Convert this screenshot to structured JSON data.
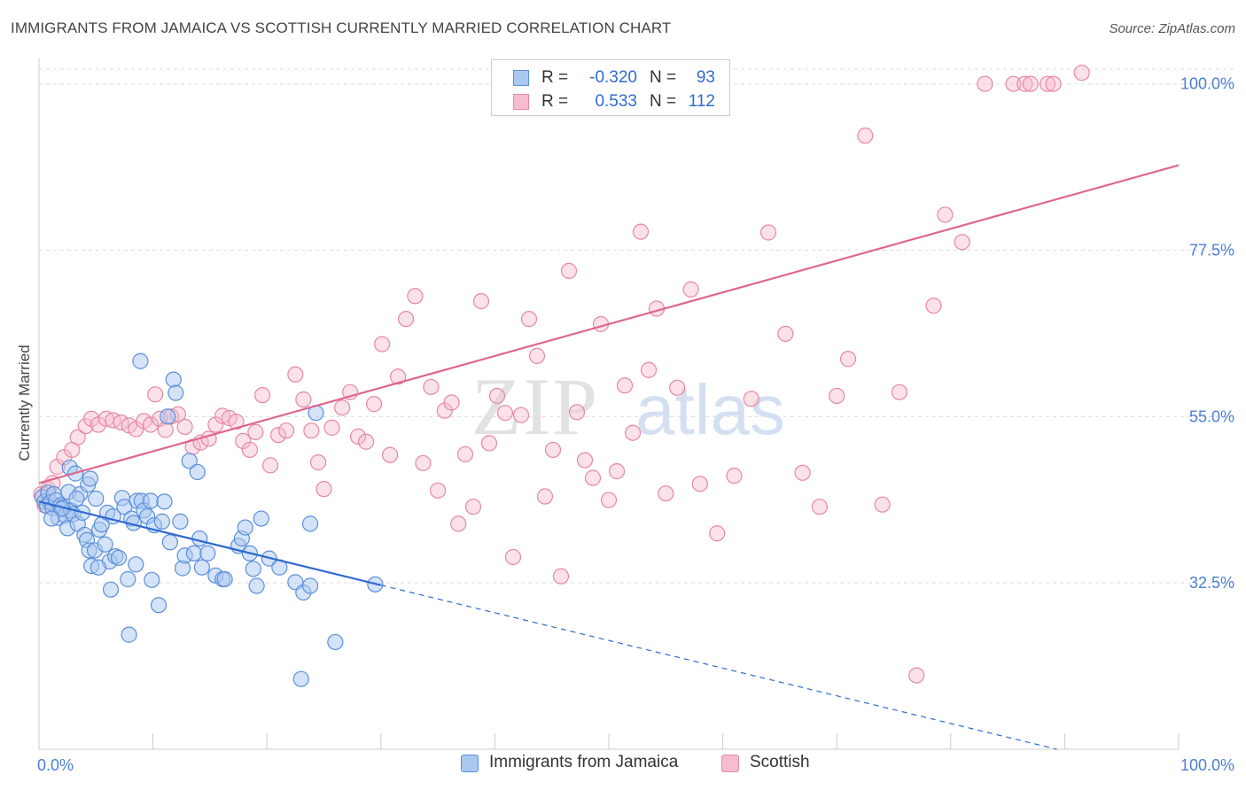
{
  "header": {
    "title": "IMMIGRANTS FROM JAMAICA VS SCOTTISH CURRENTLY MARRIED CORRELATION CHART",
    "source": "Source: ZipAtlas.com"
  },
  "stats_box": {
    "rows": [
      {
        "r_label": "R =",
        "r_value": "-0.320",
        "n_label": "N =",
        "n_value": "93"
      },
      {
        "r_label": "R =",
        "r_value": "0.533",
        "n_label": "N =",
        "n_value": "112"
      }
    ]
  },
  "legend": {
    "items": [
      {
        "label": "Immigrants from Jamaica"
      },
      {
        "label": "Scottish"
      }
    ]
  },
  "watermark": {
    "zip": "ZIP",
    "atlas": "atlas"
  },
  "chart_data": {
    "type": "scatter",
    "title": "IMMIGRANTS FROM JAMAICA VS SCOTTISH CURRENTLY MARRIED CORRELATION CHART",
    "xlabel": "",
    "ylabel": "Currently Married",
    "xlim": [
      0,
      100
    ],
    "ylim": [
      10,
      102
    ],
    "x_tick_labels": [
      "0.0%",
      "100.0%"
    ],
    "y_tick_labels": [
      "32.5%",
      "55.0%",
      "77.5%",
      "100.0%"
    ],
    "y_ticks": [
      32.5,
      55.0,
      77.5,
      100.0
    ],
    "grid": true,
    "legend_position": "bottom-center",
    "colors": {
      "jamaica_fill": "#a9c8f0",
      "jamaica_stroke": "#5b8fdc",
      "jamaica_line": "#2f6bd1",
      "scottish_fill": "#f7bccd",
      "scottish_stroke": "#e688a6",
      "scottish_line": "#e0668e",
      "stat_value": "#2f6bd1"
    },
    "series": [
      {
        "name": "Immigrants from Jamaica",
        "trend": {
          "x0": 0,
          "y0": 43.5,
          "x1": 30,
          "y1": 32.2,
          "dash_x1": 100,
          "dash_y1": 6.0
        },
        "points": [
          [
            0.3,
            44.1
          ],
          [
            0.5,
            43.5
          ],
          [
            0.7,
            42.9
          ],
          [
            0.8,
            44.7
          ],
          [
            1.0,
            43.4
          ],
          [
            1.2,
            42.6
          ],
          [
            1.3,
            44.5
          ],
          [
            1.5,
            43.7
          ],
          [
            1.7,
            41.3
          ],
          [
            1.9,
            43.0
          ],
          [
            2.1,
            42.7
          ],
          [
            2.3,
            41.6
          ],
          [
            2.5,
            39.9
          ],
          [
            2.6,
            44.8
          ],
          [
            2.7,
            48.1
          ],
          [
            2.8,
            42.3
          ],
          [
            3.0,
            41.8
          ],
          [
            3.2,
            47.3
          ],
          [
            3.4,
            40.5
          ],
          [
            3.6,
            44.5
          ],
          [
            3.8,
            42.0
          ],
          [
            4.0,
            39.0
          ],
          [
            4.2,
            38.3
          ],
          [
            4.3,
            45.8
          ],
          [
            4.4,
            36.9
          ],
          [
            4.5,
            46.6
          ],
          [
            4.6,
            34.8
          ],
          [
            4.9,
            36.9
          ],
          [
            5.0,
            43.9
          ],
          [
            5.3,
            39.7
          ],
          [
            5.5,
            40.4
          ],
          [
            5.8,
            37.7
          ],
          [
            6.0,
            42.0
          ],
          [
            6.2,
            35.4
          ],
          [
            6.3,
            31.6
          ],
          [
            6.5,
            41.5
          ],
          [
            6.7,
            36.1
          ],
          [
            7.0,
            35.9
          ],
          [
            7.3,
            44.0
          ],
          [
            7.5,
            42.8
          ],
          [
            7.8,
            33.0
          ],
          [
            7.9,
            25.5
          ],
          [
            8.1,
            41.2
          ],
          [
            8.3,
            40.6
          ],
          [
            8.5,
            35.0
          ],
          [
            8.6,
            43.6
          ],
          [
            8.9,
            62.5
          ],
          [
            9.0,
            43.6
          ],
          [
            9.2,
            42.3
          ],
          [
            9.5,
            41.5
          ],
          [
            9.8,
            43.6
          ],
          [
            10.1,
            40.3
          ],
          [
            10.5,
            29.5
          ],
          [
            10.8,
            40.8
          ],
          [
            11.0,
            43.5
          ],
          [
            11.3,
            55.0
          ],
          [
            11.5,
            38.0
          ],
          [
            11.8,
            60.0
          ],
          [
            12.0,
            58.2
          ],
          [
            12.4,
            40.8
          ],
          [
            12.6,
            34.5
          ],
          [
            12.8,
            36.2
          ],
          [
            13.2,
            49.0
          ],
          [
            13.6,
            36.5
          ],
          [
            13.9,
            47.5
          ],
          [
            14.1,
            38.5
          ],
          [
            14.3,
            34.6
          ],
          [
            14.8,
            36.5
          ],
          [
            15.5,
            33.5
          ],
          [
            16.1,
            33.0
          ],
          [
            16.3,
            33.0
          ],
          [
            17.5,
            37.5
          ],
          [
            17.8,
            38.5
          ],
          [
            18.1,
            40.0
          ],
          [
            18.5,
            36.5
          ],
          [
            18.8,
            34.4
          ],
          [
            19.1,
            32.1
          ],
          [
            19.5,
            41.2
          ],
          [
            20.2,
            35.8
          ],
          [
            21.1,
            34.6
          ],
          [
            22.5,
            32.6
          ],
          [
            23.2,
            31.2
          ],
          [
            23.8,
            32.1
          ],
          [
            23.8,
            40.5
          ],
          [
            24.3,
            55.5
          ],
          [
            26.0,
            24.5
          ],
          [
            29.5,
            32.3
          ],
          [
            23.0,
            19.5
          ],
          [
            2.0,
            42.5
          ],
          [
            1.1,
            41.2
          ],
          [
            3.3,
            43.9
          ],
          [
            5.2,
            34.6
          ],
          [
            9.9,
            32.9
          ]
        ]
      },
      {
        "name": "Scottish",
        "trend": {
          "x0": 0,
          "y0": 46.0,
          "x1": 100,
          "y1": 89.0
        },
        "points": [
          [
            0.2,
            44.5
          ],
          [
            0.5,
            43.0
          ],
          [
            0.8,
            45.2
          ],
          [
            1.2,
            46.0
          ],
          [
            1.6,
            48.2
          ],
          [
            2.2,
            49.5
          ],
          [
            2.9,
            50.5
          ],
          [
            3.4,
            52.2
          ],
          [
            4.1,
            53.7
          ],
          [
            4.6,
            54.7
          ],
          [
            5.2,
            53.9
          ],
          [
            5.9,
            54.7
          ],
          [
            6.5,
            54.5
          ],
          [
            7.2,
            54.2
          ],
          [
            7.9,
            53.8
          ],
          [
            8.5,
            53.3
          ],
          [
            9.2,
            54.4
          ],
          [
            9.8,
            53.9
          ],
          [
            10.2,
            58.0
          ],
          [
            10.6,
            54.7
          ],
          [
            11.1,
            53.2
          ],
          [
            11.6,
            55.0
          ],
          [
            12.2,
            55.3
          ],
          [
            12.8,
            53.6
          ],
          [
            13.5,
            50.9
          ],
          [
            14.2,
            51.5
          ],
          [
            14.9,
            52.0
          ],
          [
            15.5,
            53.9
          ],
          [
            16.1,
            55.1
          ],
          [
            16.7,
            54.8
          ],
          [
            17.3,
            54.3
          ],
          [
            17.9,
            51.7
          ],
          [
            18.5,
            50.5
          ],
          [
            19.0,
            52.9
          ],
          [
            19.6,
            57.9
          ],
          [
            20.3,
            48.4
          ],
          [
            21.0,
            52.5
          ],
          [
            21.7,
            53.1
          ],
          [
            22.5,
            60.7
          ],
          [
            23.2,
            57.3
          ],
          [
            23.9,
            53.1
          ],
          [
            24.5,
            48.8
          ],
          [
            25.0,
            45.2
          ],
          [
            25.7,
            53.5
          ],
          [
            26.6,
            56.2
          ],
          [
            27.3,
            58.3
          ],
          [
            28.0,
            52.3
          ],
          [
            28.7,
            51.6
          ],
          [
            29.4,
            56.7
          ],
          [
            30.1,
            64.8
          ],
          [
            30.8,
            49.8
          ],
          [
            31.5,
            60.4
          ],
          [
            32.2,
            68.2
          ],
          [
            33.0,
            71.3
          ],
          [
            33.7,
            48.7
          ],
          [
            34.4,
            59.0
          ],
          [
            35.0,
            45.0
          ],
          [
            35.6,
            55.8
          ],
          [
            36.2,
            56.9
          ],
          [
            36.8,
            40.5
          ],
          [
            37.4,
            49.9
          ],
          [
            38.1,
            42.8
          ],
          [
            38.8,
            70.6
          ],
          [
            39.5,
            51.4
          ],
          [
            40.2,
            57.8
          ],
          [
            40.9,
            55.5
          ],
          [
            41.6,
            36.0
          ],
          [
            42.3,
            55.2
          ],
          [
            43.0,
            68.2
          ],
          [
            43.7,
            63.2
          ],
          [
            44.4,
            44.2
          ],
          [
            45.1,
            50.5
          ],
          [
            45.8,
            33.4
          ],
          [
            46.5,
            74.7
          ],
          [
            47.2,
            55.6
          ],
          [
            47.9,
            49.1
          ],
          [
            48.6,
            46.7
          ],
          [
            49.3,
            67.5
          ],
          [
            50.0,
            43.7
          ],
          [
            50.7,
            47.6
          ],
          [
            51.4,
            59.2
          ],
          [
            52.1,
            52.8
          ],
          [
            52.8,
            80.0
          ],
          [
            53.5,
            61.3
          ],
          [
            54.2,
            69.6
          ],
          [
            55.0,
            44.6
          ],
          [
            56.0,
            58.9
          ],
          [
            57.2,
            72.2
          ],
          [
            58.0,
            45.9
          ],
          [
            59.5,
            39.2
          ],
          [
            61.0,
            47.0
          ],
          [
            62.5,
            57.4
          ],
          [
            64.0,
            79.9
          ],
          [
            65.5,
            66.2
          ],
          [
            67.0,
            47.4
          ],
          [
            68.5,
            42.8
          ],
          [
            70.0,
            57.8
          ],
          [
            71.0,
            62.8
          ],
          [
            72.5,
            93.0
          ],
          [
            74.0,
            43.1
          ],
          [
            75.5,
            58.3
          ],
          [
            77.0,
            20.0
          ],
          [
            78.5,
            70.0
          ],
          [
            79.5,
            82.3
          ],
          [
            81.0,
            78.6
          ],
          [
            83.0,
            100.0
          ],
          [
            85.5,
            100.0
          ],
          [
            86.5,
            100.0
          ],
          [
            87.0,
            100.0
          ],
          [
            88.5,
            100.0
          ],
          [
            89.0,
            100.0
          ],
          [
            91.5,
            101.5
          ]
        ]
      }
    ]
  }
}
